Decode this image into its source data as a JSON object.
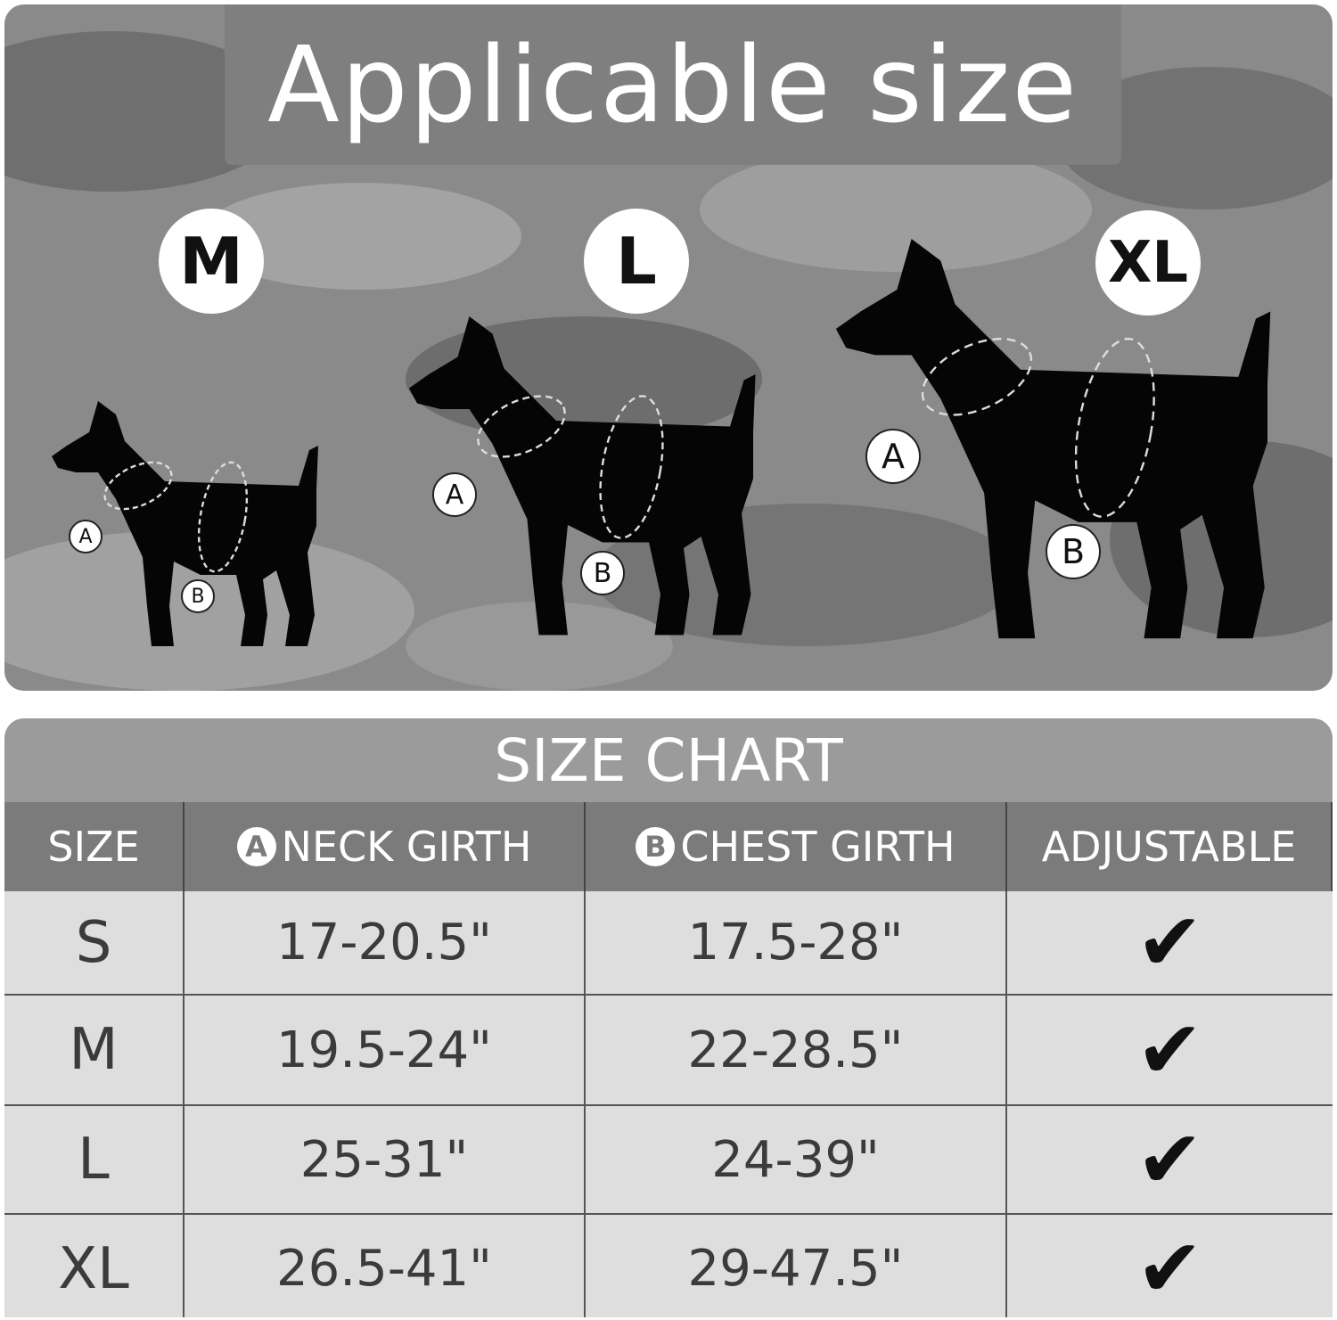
{
  "header": {
    "title": "Applicable size"
  },
  "sizes_shown": [
    "M",
    "L",
    "XL"
  ],
  "measure_labels": {
    "a": "A",
    "b": "B"
  },
  "size_chart": {
    "title": "SIZE CHART",
    "columns": [
      {
        "label": "SIZE"
      },
      {
        "badge": "A",
        "label": "NECK GIRTH"
      },
      {
        "badge": "B",
        "label": "CHEST GIRTH"
      },
      {
        "label": "ADJUSTABLE"
      }
    ],
    "rows": [
      {
        "size": "S",
        "neck": "17-20.5\"",
        "chest": "17.5-28\"",
        "adjustable": "✔"
      },
      {
        "size": "M",
        "neck": "19.5-24\"",
        "chest": "22-28.5\"",
        "adjustable": "✔"
      },
      {
        "size": "L",
        "neck": "25-31\"",
        "chest": "24-39\"",
        "adjustable": "✔"
      },
      {
        "size": "XL",
        "neck": "26.5-41\"",
        "chest": "29-47.5\"",
        "adjustable": "✔"
      }
    ]
  },
  "colors": {
    "panel": "#8a8a8a",
    "header": "#7b7b7b",
    "table_bg": "#dedede",
    "text": "#3b3b3b"
  }
}
